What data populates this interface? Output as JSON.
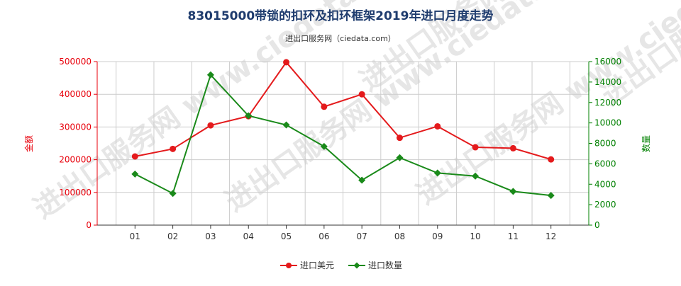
{
  "chart_data": {
    "type": "line",
    "title": "83015000带锁的扣环及扣环框架2019年进口月度走势",
    "subtitle": "进出口服务网（ciedata.com）",
    "watermark": "进出口服务网 www.ciedata.com",
    "categories": [
      "01",
      "02",
      "03",
      "04",
      "05",
      "06",
      "07",
      "08",
      "09",
      "10",
      "11",
      "12"
    ],
    "y_left": {
      "label": "金额",
      "ylim": [
        0,
        500000
      ],
      "ticks": [
        "0",
        "100000",
        "200000",
        "300000",
        "400000",
        "500000"
      ],
      "color": "#e8000b"
    },
    "y_right": {
      "label": "数量",
      "ylim": [
        0,
        16000
      ],
      "ticks": [
        "0",
        "2000",
        "4000",
        "6000",
        "8000",
        "10000",
        "12000",
        "14000",
        "16000"
      ],
      "color": "#008000"
    },
    "series": [
      {
        "name": "进口美元",
        "axis": "left",
        "color": "#e41a1c",
        "values": [
          210000,
          233000,
          305000,
          333000,
          498000,
          362000,
          400000,
          267000,
          302000,
          238000,
          235000,
          201000
        ]
      },
      {
        "name": "进口数量",
        "axis": "right",
        "color": "#1a8a1a",
        "values": [
          5000,
          3100,
          14700,
          10700,
          9800,
          7700,
          4400,
          6600,
          5100,
          4800,
          3300,
          2900
        ]
      }
    ],
    "grid": true,
    "legend_position": "bottom-center"
  }
}
